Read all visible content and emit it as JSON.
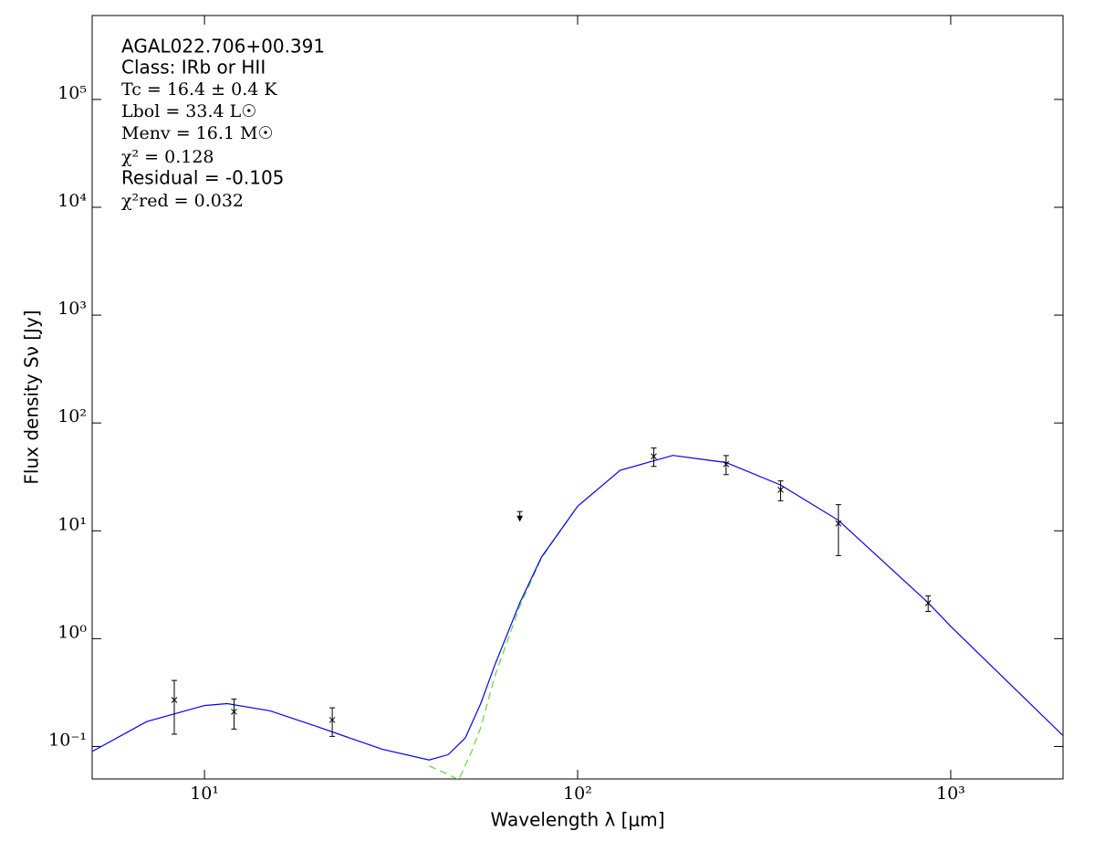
{
  "chart_data": {
    "type": "scatter",
    "annotations": [
      "AGAL022.706+00.391",
      "Class: IRb or HII",
      "Tc = 16.4 ± 0.4 K",
      "Lbol = 33.4 L☉",
      "Menv = 16.1 M☉",
      "χ² = 0.128",
      "Residual = -0.105",
      "χ²red = 0.032"
    ],
    "x_label": "Wavelength λ [μm]",
    "y_label": "Flux density Sν [Jy]",
    "log_x": true,
    "log_y": true,
    "xlim": [
      5,
      2000
    ],
    "ylim": [
      0.05,
      600000
    ],
    "xticks": [
      {
        "value": 10,
        "label": "10¹"
      },
      {
        "value": 100,
        "label": "10²"
      },
      {
        "value": 1000,
        "label": "10³"
      }
    ],
    "yticks": [
      {
        "value": 0.1,
        "label": "10⁻¹"
      },
      {
        "value": 1,
        "label": "10⁰"
      },
      {
        "value": 10,
        "label": "10¹"
      },
      {
        "value": 100,
        "label": "10²"
      },
      {
        "value": 1000,
        "label": "10³"
      },
      {
        "value": 10000,
        "label": "10⁴"
      },
      {
        "value": 100000,
        "label": "10⁵"
      }
    ],
    "points": {
      "color": "#000000",
      "x": [
        8.3,
        12,
        22,
        160,
        250,
        350,
        500,
        870
      ],
      "values": [
        0.27,
        0.21,
        0.176,
        49,
        41.5,
        24,
        11.7,
        2.14
      ],
      "yerr": [
        0.14,
        0.065,
        0.052,
        9.5,
        8.3,
        5,
        5.8,
        0.35
      ]
    },
    "upper_limits": {
      "color": "#000000",
      "x": [
        70
      ],
      "values": [
        13.4
      ]
    },
    "model": {
      "color": "#0000ff",
      "x": [
        5,
        7,
        10,
        11.5,
        15,
        20,
        30,
        40,
        45,
        50,
        55,
        60,
        70,
        80,
        100,
        130,
        180,
        250,
        350,
        500,
        870,
        1000,
        2000
      ],
      "values": [
        0.09,
        0.17,
        0.24,
        0.25,
        0.214,
        0.153,
        0.094,
        0.075,
        0.084,
        0.12,
        0.25,
        0.57,
        2.15,
        5.7,
        16.9,
        36.4,
        50,
        43,
        26.6,
        12.5,
        2.15,
        1.3,
        0.126
      ]
    },
    "component": {
      "color": "#55dd33",
      "dashed": true,
      "x": [
        40,
        45,
        48,
        52,
        55,
        60,
        70,
        80,
        100
      ],
      "values": [
        0.066,
        0.055,
        0.049,
        0.09,
        0.15,
        0.45,
        2.0,
        5.6,
        16.9
      ]
    }
  }
}
